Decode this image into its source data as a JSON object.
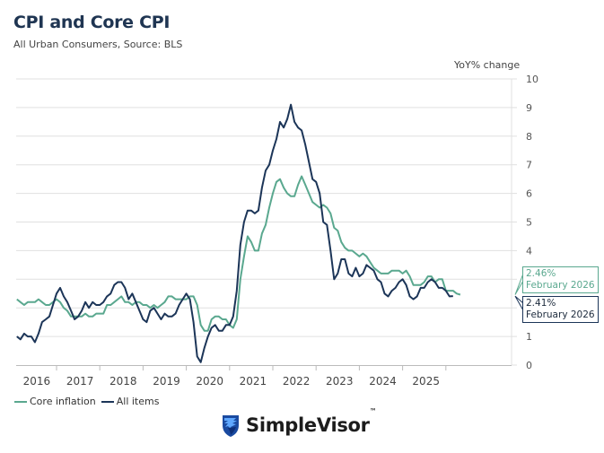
{
  "header": {
    "title": "CPI and Core CPI",
    "subtitle": "All Urban Consumers, Source: BLS"
  },
  "brand": {
    "name": "SimpleVisor",
    "tm": "™",
    "logo_icon": "eagle-shield-icon"
  },
  "colors": {
    "core": "#5aa88f",
    "all": "#1c3558",
    "grid": "#e0e0e0",
    "axis": "#bbbbbb"
  },
  "chart_data": {
    "type": "line",
    "title": "CPI and Core CPI",
    "subtitle": "All Urban Consumers, Source: BLS",
    "xlabel": "",
    "ylabel": "YoY% change",
    "ylim": [
      0,
      10
    ],
    "yticks": [
      0,
      1,
      2,
      3,
      4,
      5,
      6,
      7,
      8,
      9,
      10
    ],
    "xticks": [
      "2016",
      "2017",
      "2018",
      "2019",
      "2020",
      "2021",
      "2022",
      "2023",
      "2024",
      "2025"
    ],
    "y_axis_side": "right",
    "grid": true,
    "legend_position": "bottom-left",
    "x_start": "2016-02",
    "x_end": "2026-02",
    "frequency": "monthly",
    "series": [
      {
        "name": "Core inflation",
        "color": "#5aa88f",
        "values": [
          2.3,
          2.2,
          2.1,
          2.2,
          2.2,
          2.2,
          2.3,
          2.2,
          2.1,
          2.1,
          2.2,
          2.3,
          2.2,
          2.0,
          1.9,
          1.7,
          1.7,
          1.7,
          1.7,
          1.8,
          1.7,
          1.7,
          1.8,
          1.8,
          1.8,
          2.1,
          2.1,
          2.2,
          2.3,
          2.4,
          2.2,
          2.2,
          2.1,
          2.2,
          2.2,
          2.1,
          2.1,
          2.0,
          2.1,
          2.0,
          2.1,
          2.2,
          2.4,
          2.4,
          2.3,
          2.3,
          2.3,
          2.3,
          2.4,
          2.4,
          2.1,
          1.4,
          1.2,
          1.2,
          1.6,
          1.7,
          1.7,
          1.6,
          1.6,
          1.4,
          1.3,
          1.6,
          3.0,
          3.8,
          4.5,
          4.3,
          4.0,
          4.0,
          4.6,
          4.9,
          5.5,
          6.0,
          6.4,
          6.5,
          6.2,
          6.0,
          5.9,
          5.9,
          6.3,
          6.6,
          6.3,
          6.0,
          5.7,
          5.6,
          5.5,
          5.6,
          5.5,
          5.3,
          4.8,
          4.7,
          4.3,
          4.1,
          4.0,
          4.0,
          3.9,
          3.8,
          3.9,
          3.8,
          3.6,
          3.4,
          3.3,
          3.2,
          3.2,
          3.2,
          3.3,
          3.3,
          3.3,
          3.2,
          3.3,
          3.1,
          2.8,
          2.8,
          2.8,
          2.9,
          3.1,
          3.1,
          2.9,
          3.0,
          3.0,
          2.6,
          2.6,
          2.6,
          2.5,
          2.46
        ]
      },
      {
        "name": "All items",
        "color": "#1c3558",
        "values": [
          1.0,
          0.9,
          1.1,
          1.0,
          1.0,
          0.8,
          1.1,
          1.5,
          1.6,
          1.7,
          2.1,
          2.5,
          2.7,
          2.4,
          2.2,
          1.9,
          1.6,
          1.7,
          1.9,
          2.2,
          2.0,
          2.2,
          2.1,
          2.1,
          2.2,
          2.4,
          2.5,
          2.8,
          2.9,
          2.9,
          2.7,
          2.3,
          2.5,
          2.2,
          1.9,
          1.6,
          1.5,
          1.9,
          2.0,
          1.8,
          1.6,
          1.8,
          1.7,
          1.7,
          1.8,
          2.1,
          2.3,
          2.5,
          2.3,
          1.5,
          0.3,
          0.1,
          0.6,
          1.0,
          1.3,
          1.4,
          1.2,
          1.2,
          1.4,
          1.4,
          1.7,
          2.6,
          4.2,
          5.0,
          5.4,
          5.4,
          5.3,
          5.4,
          6.2,
          6.8,
          7.0,
          7.5,
          7.9,
          8.5,
          8.3,
          8.6,
          9.1,
          8.5,
          8.3,
          8.2,
          7.7,
          7.1,
          6.5,
          6.4,
          6.0,
          5.0,
          4.9,
          4.0,
          3.0,
          3.2,
          3.7,
          3.7,
          3.2,
          3.1,
          3.4,
          3.1,
          3.2,
          3.5,
          3.4,
          3.3,
          3.0,
          2.9,
          2.5,
          2.4,
          2.6,
          2.7,
          2.9,
          3.0,
          2.8,
          2.4,
          2.3,
          2.4,
          2.7,
          2.7,
          2.9,
          3.0,
          2.9,
          2.7,
          2.7,
          2.6,
          2.4,
          2.41
        ]
      }
    ],
    "annotations": [
      {
        "series": "Core inflation",
        "value_label": "2.46%",
        "date_label": "February 2026"
      },
      {
        "series": "All items",
        "value_label": "2.41%",
        "date_label": "February 2026"
      }
    ]
  },
  "legend": {
    "items": [
      {
        "label": "Core inflation"
      },
      {
        "label": "All items"
      }
    ]
  }
}
